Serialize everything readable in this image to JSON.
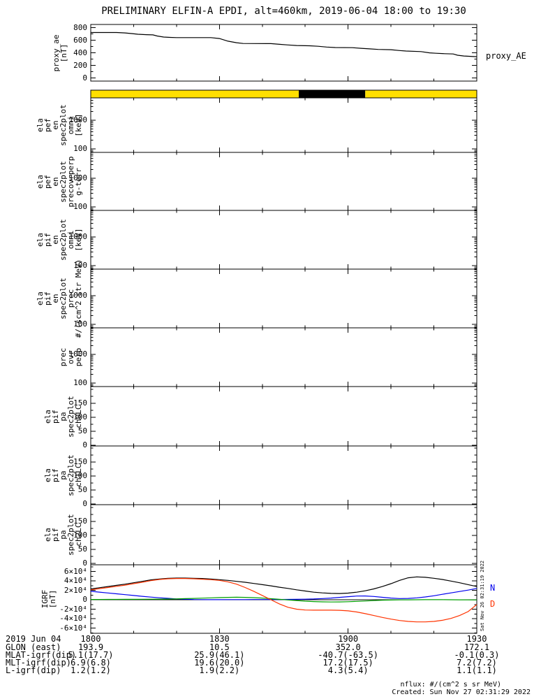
{
  "title": "PRELIMINARY ELFIN-A EPDI, alt=460km, 2019-06-04 18:00 to 19:30",
  "side_timestamp": "Sat Nov 26 02:31:19 2022",
  "xaxis": {
    "tick_labels": [
      "1800",
      "1830",
      "1900",
      "1930"
    ],
    "tick_minutes": [
      0,
      30,
      60,
      90
    ]
  },
  "chart_data": [
    {
      "id": "proxy_ae",
      "type": "line",
      "ylabel_lines": [
        "proxy_ae",
        "[nT]"
      ],
      "right_label": "proxy_AE",
      "ylim": [
        0,
        800
      ],
      "ytick_values": [
        0,
        200,
        400,
        600,
        800
      ],
      "ytick_labels": [
        "0",
        "200",
        "400",
        "600",
        "800"
      ],
      "x_minutes": [
        0,
        6,
        8,
        9.5,
        11,
        13,
        14.5,
        15.5,
        17,
        18.5,
        20,
        28,
        30,
        32,
        34,
        35.5,
        42,
        44,
        46,
        48,
        51,
        53,
        55,
        57,
        61,
        63,
        65,
        67,
        70,
        72,
        73.5,
        77,
        79,
        80.5,
        82.5,
        84.5,
        85.5,
        87,
        90
      ],
      "series": [
        {
          "name": "proxy_AE",
          "color": "#000000",
          "values": [
            722,
            722,
            716,
            706,
            695,
            688,
            685,
            667,
            650,
            644,
            641,
            641,
            627,
            585,
            560,
            548,
            546,
            534,
            524,
            516,
            511,
            503,
            491,
            483,
            481,
            471,
            462,
            453,
            449,
            436,
            428,
            419,
            399,
            392,
            385,
            381,
            361,
            349,
            338
          ]
        }
      ]
    },
    {
      "id": "position_bar",
      "type": "strip",
      "segments": [
        {
          "start_min": 0,
          "end_min": 48.5,
          "color": "#ffdf00"
        },
        {
          "start_min": 48.5,
          "end_min": 64,
          "color": "#000000"
        },
        {
          "start_min": 64,
          "end_min": 90,
          "color": "#ffdf00"
        }
      ]
    },
    {
      "id": "ela_pef_en_spec2plot_omni",
      "type": "spectrogram",
      "empty": true,
      "yscale": "log",
      "ylim": [
        50,
        7000
      ],
      "ylabel_lines": [
        "ela",
        "pef",
        "en",
        "spec2plot",
        "omni",
        "[keV]"
      ],
      "ytick_values": [
        100,
        1000
      ],
      "ytick_labels": [
        "100",
        "1000"
      ]
    },
    {
      "id": "ela_pef_en_spec2plot_precovrperp",
      "type": "spectrogram",
      "empty": true,
      "yscale": "log",
      "ylim": [
        50,
        7000
      ],
      "ylabel_lines": [
        "ela",
        "pef",
        "en",
        "spec2plot",
        "precovrperp",
        "g-terr"
      ],
      "ytick_values": [
        100,
        1000
      ],
      "ytick_labels": [
        "100",
        "1000"
      ]
    },
    {
      "id": "ela_pif_en_spec2plot_omni",
      "type": "spectrogram",
      "empty": true,
      "yscale": "log",
      "ylim": [
        50,
        7000
      ],
      "ylabel_lines": [
        "ela",
        "pif",
        "en",
        "spec2plot",
        "omni",
        "[keV]"
      ],
      "ytick_values": [
        100,
        1000
      ],
      "ytick_labels": [
        "100",
        "1000"
      ]
    },
    {
      "id": "ela_pif_en_spec2plot_prec",
      "type": "spectrogram",
      "empty": true,
      "yscale": "log",
      "ylim": [
        50,
        7000
      ],
      "ylabel_lines": [
        "ela",
        "pif",
        "en",
        "spec2plot",
        "prec",
        "#/(scm^2 str MeV)"
      ],
      "ytick_values": [
        100,
        1000
      ],
      "ytick_labels": [
        "100",
        "1000"
      ]
    },
    {
      "id": "prec_ovr_perp",
      "type": "spectrogram",
      "empty": true,
      "yscale": "log",
      "ylim": [
        50,
        7000
      ],
      "ylabel_lines": [
        "prec",
        "ovr",
        "perp"
      ],
      "ytick_values": [
        100,
        1000
      ],
      "ytick_labels": [
        "100",
        "1000"
      ]
    },
    {
      "id": "ela_pif_pa_spec2plot_ch0LC",
      "type": "spectrogram",
      "empty": true,
      "yscale": "linear",
      "ylim": [
        0,
        180
      ],
      "ylabel_lines": [
        "ela",
        "pif",
        "pa",
        "spec2plot",
        "ch0LC"
      ],
      "ytick_values": [
        0,
        50,
        100,
        150
      ],
      "ytick_labels": [
        "0",
        "50",
        "100",
        "150"
      ]
    },
    {
      "id": "ela_pif_pa_spec2plot_ch1LC",
      "type": "spectrogram",
      "empty": true,
      "yscale": "linear",
      "ylim": [
        0,
        180
      ],
      "ylabel_lines": [
        "ela",
        "pif",
        "pa",
        "spec2plot",
        "ch1LC"
      ],
      "ytick_values": [
        0,
        50,
        100,
        150
      ],
      "ytick_labels": [
        "0",
        "50",
        "100",
        "150"
      ]
    },
    {
      "id": "ela_pif_pa_spec2plot_ch2LC",
      "type": "spectrogram",
      "empty": true,
      "yscale": "linear",
      "ylim": [
        0,
        180
      ],
      "ylabel_lines": [
        "ela",
        "pif",
        "pa",
        "spec2plot",
        "ch2LC"
      ],
      "ytick_values": [
        0,
        50,
        100,
        150
      ],
      "ytick_labels": [
        "0",
        "50",
        "100",
        "150"
      ]
    },
    {
      "id": "igrf",
      "type": "line",
      "zero_line": true,
      "ylabel_lines": [
        "IGRF",
        "[nT]"
      ],
      "ylim": [
        -70000,
        70000
      ],
      "ytick_values": [
        -60000,
        -40000,
        -20000,
        0,
        20000,
        40000,
        60000
      ],
      "ytick_labels": [
        "-6×10⁴",
        "-4×10⁴",
        "-2×10⁴",
        "0",
        "2×10⁴",
        "4×10⁴",
        "6×10⁴"
      ],
      "x_minutes": [
        0,
        2,
        4,
        6,
        8,
        10,
        12,
        14,
        16,
        18,
        20,
        22,
        24,
        26,
        28,
        30,
        32,
        34,
        36,
        38,
        40,
        42,
        44,
        46,
        48,
        50,
        52,
        54,
        56,
        58,
        60,
        62,
        64,
        66,
        68,
        70,
        72,
        74,
        76,
        78,
        80,
        82,
        84,
        86,
        88,
        90
      ],
      "series": [
        {
          "name": "T",
          "color": "#000000",
          "values": [
            23000,
            25500,
            28000,
            30500,
            33000,
            36000,
            39000,
            42000,
            44000,
            45500,
            46000,
            46000,
            45500,
            45000,
            44000,
            42500,
            41000,
            39000,
            37000,
            34500,
            32000,
            29500,
            26500,
            24000,
            21000,
            18500,
            16000,
            14500,
            13500,
            13200,
            14000,
            16000,
            19000,
            23000,
            28000,
            34000,
            41000,
            46500,
            48500,
            47500,
            45500,
            43000,
            39500,
            36000,
            32000,
            28000
          ]
        },
        {
          "name": "N",
          "color": "#0000ee",
          "right_label": "N",
          "values": [
            18000,
            16200,
            14400,
            12600,
            10800,
            9000,
            7300,
            5700,
            4200,
            2900,
            1800,
            1000,
            500,
            300,
            200,
            200,
            250,
            300,
            350,
            400,
            450,
            500,
            600,
            700,
            900,
            1200,
            1700,
            2500,
            3600,
            5000,
            6500,
            7800,
            8000,
            7000,
            5200,
            3500,
            2500,
            2800,
            4000,
            6000,
            8500,
            11500,
            14500,
            17500,
            20500,
            24000
          ]
        },
        {
          "name": "E",
          "color": "#00a000",
          "values": [
            600,
            650,
            700,
            750,
            850,
            950,
            1050,
            1150,
            1300,
            1500,
            1800,
            2300,
            2800,
            3400,
            4000,
            4600,
            5100,
            5300,
            5100,
            4500,
            3500,
            2200,
            900,
            -400,
            -1600,
            -2900,
            -3900,
            -4500,
            -4800,
            -4600,
            -4100,
            -3400,
            -2600,
            -1800,
            -1100,
            -600,
            -300,
            -100,
            0,
            100,
            100,
            100,
            0,
            -100,
            -300,
            -400
          ]
        },
        {
          "name": "D",
          "color": "#ff3300",
          "right_label": "D",
          "values": [
            21000,
            23500,
            26000,
            28500,
            31000,
            34000,
            37000,
            40500,
            43000,
            44500,
            45000,
            45000,
            44500,
            43500,
            42500,
            41000,
            38000,
            33000,
            26000,
            18000,
            9000,
            0,
            -9000,
            -16000,
            -20000,
            -21800,
            -22000,
            -22000,
            -22000,
            -22300,
            -23500,
            -26000,
            -29500,
            -33500,
            -37500,
            -41000,
            -44000,
            -46000,
            -47000,
            -47000,
            -46000,
            -43500,
            -39500,
            -33500,
            -25000,
            -10000
          ]
        }
      ]
    }
  ],
  "footer": {
    "date_label": "2019 Jun 04",
    "rows": [
      {
        "label": "GLON (east)",
        "values": [
          "193.9",
          "10.5",
          "352.0",
          "172.1"
        ]
      },
      {
        "label": "MLAT-igrf(dip)",
        "values": [
          "5.1(17.7)",
          "25.9(46.1)",
          "-40.7(-63.5)",
          "-0.1(0.3)"
        ]
      },
      {
        "label": "MLT-igrf(dip)",
        "values": [
          "6.9(6.8)",
          "19.6(20.0)",
          "17.2(17.5)",
          "7.2(7.2)"
        ]
      },
      {
        "label": "L-igrf(dip)",
        "values": [
          "1.2(1.2)",
          "1.9(2.2)",
          "4.3(5.4)",
          "1.1(1.1)"
        ]
      }
    ],
    "nflux_note": "nflux: #/(cm^2 s sr MeV)",
    "created": "Created: Sun Nov 27 02:31:29 2022"
  }
}
